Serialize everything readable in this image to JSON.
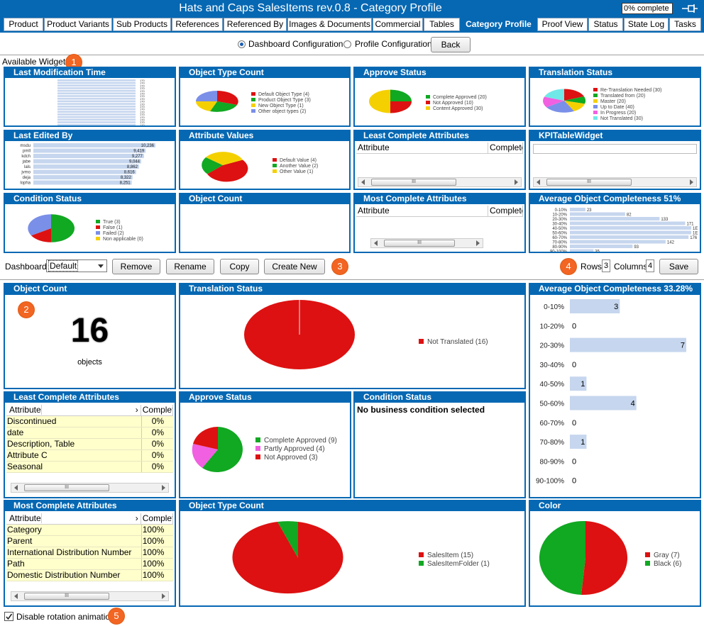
{
  "title": "Hats and Caps SalesItems rev.0.8 - Category Profile",
  "progress": "0% complete",
  "tabs": [
    "Product",
    "Product Variants",
    "Sub Products",
    "References",
    "Referenced By",
    "Images & Documents",
    "Commercial",
    "Tables",
    "Category Profile",
    "Proof View",
    "Status",
    "State Log",
    "Tasks"
  ],
  "selected_tab": "Category Profile",
  "config": {
    "dashboard_label": "Dashboard Configuration",
    "profile_label": "Profile Configuration",
    "back": "Back"
  },
  "available_label": "Available Widgets",
  "badges": [
    "1",
    "2",
    "3",
    "4",
    "5"
  ],
  "thumbs": {
    "last_mod": {
      "title": "Last Modification Time",
      "value": "170"
    },
    "obj_type": {
      "title": "Object Type Count",
      "legend": [
        "Default Object Type (4)",
        "Product Object Type (3)",
        "New Object Type (1)",
        "Other object types (2)"
      ]
    },
    "approve": {
      "title": "Approve Status",
      "legend": [
        "Complete Approved (20)",
        "Not Approved (10)",
        "Content Approved (30)"
      ]
    },
    "translation": {
      "title": "Translation Status",
      "legend": [
        "Re-Translation Needed (30)",
        "Translated from (20)",
        "Master (20)",
        "Up to Date (40)",
        "In Progress (20)",
        "Not Translated (30)"
      ]
    },
    "last_edited": {
      "title": "Last Edited By",
      "users": [
        "msdu",
        "pmll",
        "kdch",
        "jabe",
        "lals",
        "jvmo",
        "deja",
        "lopha"
      ],
      "values": [
        10236,
        9419,
        9277,
        9044,
        8862,
        8616,
        8322,
        8251
      ]
    },
    "attr_values": {
      "title": "Attribute Values",
      "legend": [
        "Default Value (4)",
        "Another Value (2)",
        "Other Value (1)"
      ]
    },
    "least_complete": {
      "title": "Least Complete Attributes",
      "col1": "Attribute",
      "col2": "Complete"
    },
    "kpi": {
      "title": "KPITableWidget"
    },
    "condition": {
      "title": "Condition Status",
      "legend": [
        "True (3)",
        "False (1)",
        "Failed (2)",
        "Non applicable (0)"
      ]
    },
    "obj_count": {
      "title": "Object Count"
    },
    "most_complete": {
      "title": "Most Complete Attributes",
      "col1": "Attribute",
      "col2": "Complete"
    },
    "avg_complete": {
      "title": "Average Object Completeness 51%",
      "ranges": [
        "0-10%",
        "10-20%",
        "20-30%",
        "30-40%",
        "40-50%",
        "50-60%",
        "60-70%",
        "70-80%",
        "80-90%",
        "90-100%"
      ],
      "values": [
        23,
        82,
        133,
        171,
        "1E",
        "1E",
        176,
        142,
        93,
        35
      ]
    }
  },
  "toolbar": {
    "dashboard_label": "Dashboard",
    "dashboard_value": "Default",
    "remove": "Remove",
    "rename": "Rename",
    "copy": "Copy",
    "create_new": "Create New",
    "rows_label": "Rows",
    "rows": "3",
    "columns_label": "Columns",
    "columns": "4",
    "save": "Save"
  },
  "dash": {
    "obj_count": {
      "title": "Object Count",
      "count": "16",
      "unit": "objects"
    },
    "translation": {
      "title": "Translation Status",
      "legend": [
        "Not Translated (16)"
      ]
    },
    "avg_complete": {
      "title": "Average Object Completeness 33.28%",
      "ranges": [
        "0-10%",
        "10-20%",
        "20-30%",
        "30-40%",
        "40-50%",
        "50-60%",
        "60-70%",
        "70-80%",
        "80-90%",
        "90-100%"
      ],
      "values": [
        3,
        0,
        7,
        0,
        1,
        4,
        0,
        1,
        0,
        0
      ]
    },
    "least_complete": {
      "title": "Least Complete Attributes",
      "col1": "Attribute",
      "col2": "Complete",
      "rows": [
        [
          "Discontinued",
          "0%"
        ],
        [
          "date",
          "0%"
        ],
        [
          "Description, Table",
          "0%"
        ],
        [
          "Attribute C",
          "0%"
        ],
        [
          "Seasonal",
          "0%"
        ]
      ]
    },
    "approve": {
      "title": "Approve Status",
      "legend": [
        "Complete Approved (9)",
        "Partly Approved (4)",
        "Not Approved (3)"
      ]
    },
    "condition": {
      "title": "Condition Status",
      "message": "No business condition selected"
    },
    "most_complete": {
      "title": "Most Complete Attributes",
      "col1": "Attribute",
      "col2": "Complete",
      "rows": [
        [
          "Category",
          "100%"
        ],
        [
          "Parent",
          "100%"
        ],
        [
          "International Distribution Number",
          "100%"
        ],
        [
          "Path",
          "100%"
        ],
        [
          "Domestic Distribution Number",
          "100%"
        ]
      ]
    },
    "obj_type": {
      "title": "Object Type Count",
      "legend": [
        "SalesItem (15)",
        "SalesItemFolder (1)"
      ]
    },
    "color": {
      "title": "Color",
      "legend": [
        "Gray (7)",
        "Black (6)"
      ]
    }
  },
  "footer": {
    "disable_rotation": "Disable rotation animation"
  },
  "scroll_thumb": "III",
  "colors": {
    "brand": "#0668b3",
    "red": "#dd1111",
    "green": "#11a822",
    "yellow": "#f5d000",
    "blue": "#7a8fe8",
    "pink": "#f060e0",
    "cyan": "#70e8e8",
    "bar": "#c6d6ee",
    "orange": "#f26522"
  }
}
